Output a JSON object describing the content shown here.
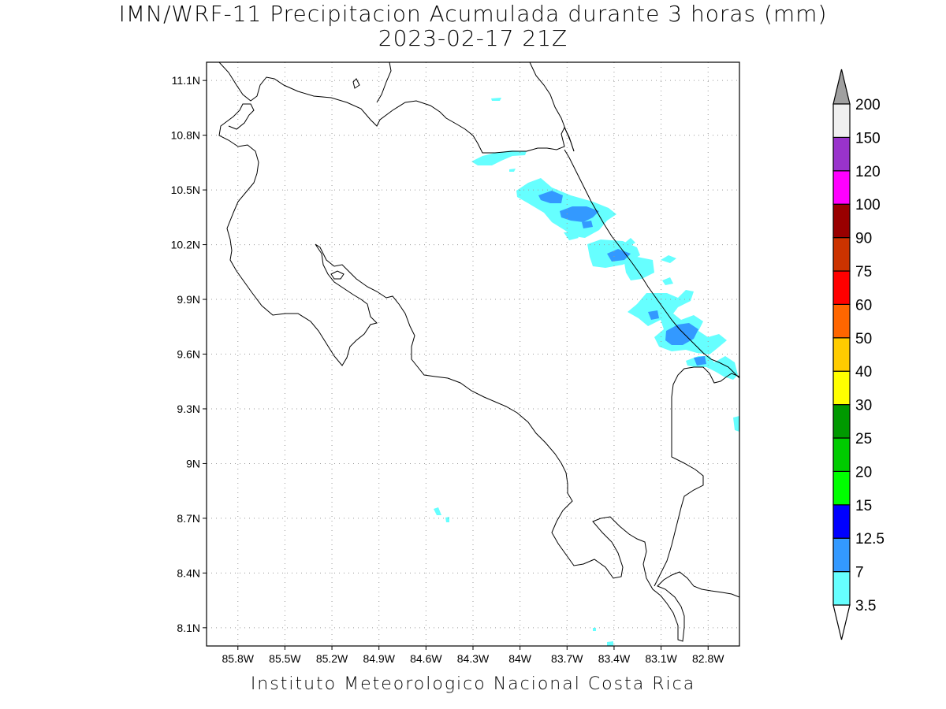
{
  "title": {
    "line1": "IMN/WRF-11 Precipitacion Acumulada durante 3 horas (mm)",
    "line2": "2023-02-17 21Z"
  },
  "footer": "Instituto Meteorologico Nacional Costa Rica",
  "map": {
    "lon_range": [
      -86.0,
      -82.6
    ],
    "lat_range": [
      8.0,
      11.2
    ],
    "grid": "dotted",
    "lon_ticks": [
      "85.8W",
      "85.5W",
      "85.2W",
      "84.9W",
      "84.6W",
      "84.3W",
      "84W",
      "83.7W",
      "83.4W",
      "83.1W",
      "82.8W"
    ],
    "lat_ticks": [
      "8.1N",
      "8.4N",
      "8.7N",
      "9N",
      "9.3N",
      "9.6N",
      "9.9N",
      "10.2N",
      "10.5N",
      "10.8N",
      "11.1N"
    ]
  },
  "colorbar": {
    "labels": [
      "3.5",
      "7",
      "12.5",
      "15",
      "20",
      "25",
      "30",
      "40",
      "50",
      "60",
      "75",
      "90",
      "100",
      "120",
      "150",
      "200"
    ],
    "colors": [
      "#66ffff",
      "#3399ff",
      "#0000ff",
      "#00ff00",
      "#00cc00",
      "#009900",
      "#ffff00",
      "#ffcc00",
      "#ff6600",
      "#ff0000",
      "#cc3300",
      "#990000",
      "#ff00ff",
      "#9933cc",
      "#f0f0f0"
    ],
    "under_color": "#ffffff",
    "over_color": "#a0a0a0"
  },
  "colors": {
    "light_precip": "#66ffff",
    "moderate_precip": "#3399ff"
  }
}
